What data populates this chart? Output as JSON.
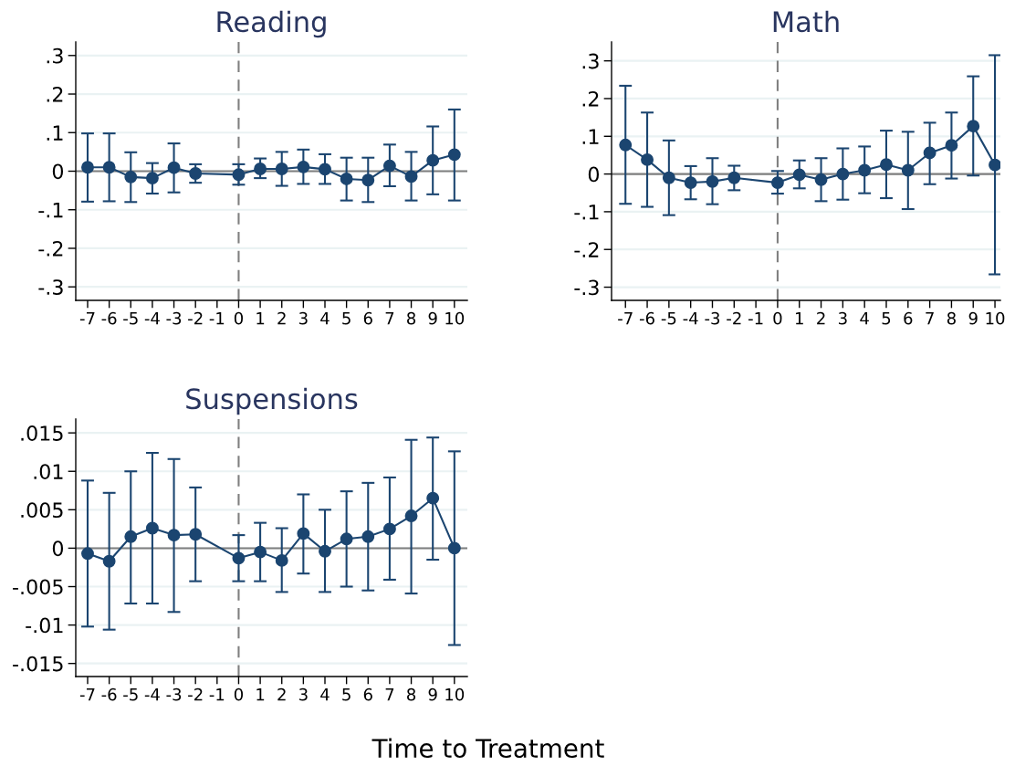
{
  "chart_data": [
    {
      "type": "line",
      "title": "Reading",
      "x": [
        -7,
        -6,
        -5,
        -4,
        -3,
        -2,
        0,
        1,
        2,
        3,
        4,
        5,
        6,
        7,
        8,
        9,
        10
      ],
      "marker": "circle",
      "grid": "y",
      "color": "#1b4570",
      "values": [
        0.01,
        0.01,
        -0.015,
        -0.018,
        0.009,
        -0.006,
        -0.009,
        0.006,
        0.006,
        0.011,
        0.005,
        -0.02,
        -0.023,
        0.014,
        -0.014,
        0.028,
        0.043
      ],
      "errors": [
        [
          -0.079,
          0.098
        ],
        [
          -0.078,
          0.098
        ],
        [
          -0.08,
          0.049
        ],
        [
          -0.058,
          0.021
        ],
        [
          -0.055,
          0.072
        ],
        [
          -0.03,
          0.018
        ],
        [
          -0.035,
          0.018
        ],
        [
          -0.018,
          0.033
        ],
        [
          -0.038,
          0.05
        ],
        [
          -0.033,
          0.056
        ],
        [
          -0.033,
          0.044
        ],
        [
          -0.076,
          0.035
        ],
        [
          -0.08,
          0.035
        ],
        [
          -0.039,
          0.069
        ],
        [
          -0.076,
          0.05
        ],
        [
          -0.06,
          0.116
        ],
        [
          -0.076,
          0.16
        ]
      ],
      "xlim": [
        -7.55,
        10.6
      ],
      "xticks": [
        -7,
        -6,
        -5,
        -4,
        -3,
        -2,
        -1,
        0,
        1,
        2,
        3,
        4,
        5,
        6,
        7,
        8,
        9,
        10
      ],
      "ylim": [
        -0.335,
        0.335
      ],
      "yticks": [
        {
          "value": -0.3,
          "label": "-.3"
        },
        {
          "value": -0.2,
          "label": "-.2"
        },
        {
          "value": -0.1,
          "label": "-.1"
        },
        {
          "value": 0,
          "label": "0"
        },
        {
          "value": 0.1,
          "label": ".1"
        },
        {
          "value": 0.2,
          "label": ".2"
        },
        {
          "value": 0.3,
          "label": ".3"
        }
      ],
      "ref_lines": [
        {
          "axis": "y",
          "value": 0,
          "color": "#7f7f7f",
          "line_style": "solid"
        },
        {
          "axis": "x",
          "value": 0,
          "color": "#7f7f7f",
          "line_style": "dashed"
        }
      ]
    },
    {
      "type": "line",
      "title": "Math",
      "x": [
        -7,
        -6,
        -5,
        -4,
        -3,
        -2,
        0,
        1,
        2,
        3,
        4,
        5,
        6,
        7,
        8,
        9,
        10
      ],
      "marker": "circle",
      "grid": "y",
      "color": "#1b4570",
      "values": [
        0.077,
        0.038,
        -0.01,
        -0.023,
        -0.02,
        -0.01,
        -0.023,
        -0.002,
        -0.015,
        0.0,
        0.01,
        0.025,
        0.01,
        0.056,
        0.076,
        0.127,
        0.024
      ],
      "errors": [
        [
          -0.079,
          0.234
        ],
        [
          -0.087,
          0.163
        ],
        [
          -0.109,
          0.089
        ],
        [
          -0.067,
          0.021
        ],
        [
          -0.08,
          0.042
        ],
        [
          -0.043,
          0.022
        ],
        [
          -0.052,
          0.008
        ],
        [
          -0.038,
          0.036
        ],
        [
          -0.072,
          0.042
        ],
        [
          -0.068,
          0.068
        ],
        [
          -0.051,
          0.073
        ],
        [
          -0.064,
          0.115
        ],
        [
          -0.093,
          0.112
        ],
        [
          -0.027,
          0.136
        ],
        [
          -0.012,
          0.163
        ],
        [
          -0.004,
          0.259
        ],
        [
          -0.266,
          0.315
        ]
      ],
      "xlim": [
        -7.64,
        10.25
      ],
      "xticks": [
        -7,
        -6,
        -5,
        -4,
        -3,
        -2,
        -1,
        0,
        1,
        2,
        3,
        4,
        5,
        6,
        7,
        8,
        9,
        10
      ],
      "ylim": [
        -0.335,
        0.35
      ],
      "yticks": [
        {
          "value": -0.3,
          "label": "-.3"
        },
        {
          "value": -0.2,
          "label": "-.2"
        },
        {
          "value": -0.1,
          "label": "-.1"
        },
        {
          "value": 0,
          "label": "0"
        },
        {
          "value": 0.1,
          "label": ".1"
        },
        {
          "value": 0.2,
          "label": ".2"
        },
        {
          "value": 0.3,
          "label": ".3"
        }
      ],
      "ref_lines": [
        {
          "axis": "y",
          "value": 0,
          "color": "#7f7f7f",
          "line_style": "solid"
        },
        {
          "axis": "x",
          "value": 0,
          "color": "#7f7f7f",
          "line_style": "dashed"
        }
      ]
    },
    {
      "type": "line",
      "title": "Suspensions",
      "xlabel": "Time to Treatment",
      "x": [
        -7,
        -6,
        -5,
        -4,
        -3,
        -2,
        0,
        1,
        2,
        3,
        4,
        5,
        6,
        7,
        8,
        9,
        10
      ],
      "marker": "circle",
      "grid": "y",
      "color": "#1b4570",
      "values": [
        -0.0007,
        -0.0017,
        0.0015,
        0.0026,
        0.0017,
        0.0018,
        -0.0013,
        -0.0005,
        -0.0016,
        0.0019,
        -0.0004,
        0.0012,
        0.0015,
        0.0025,
        0.0042,
        0.0065,
        0.0
      ],
      "errors": [
        [
          -0.0102,
          0.0088
        ],
        [
          -0.0106,
          0.0072
        ],
        [
          -0.0072,
          0.01
        ],
        [
          -0.0072,
          0.0124
        ],
        [
          -0.0083,
          0.0116
        ],
        [
          -0.0043,
          0.0079
        ],
        [
          -0.0043,
          0.0017
        ],
        [
          -0.0043,
          0.0033
        ],
        [
          -0.0057,
          0.0026
        ],
        [
          -0.0033,
          0.007
        ],
        [
          -0.0057,
          0.005
        ],
        [
          -0.005,
          0.0074
        ],
        [
          -0.0055,
          0.0085
        ],
        [
          -0.0041,
          0.0092
        ],
        [
          -0.0059,
          0.0141
        ],
        [
          -0.0015,
          0.0144
        ],
        [
          -0.0126,
          0.0126
        ]
      ],
      "xlim": [
        -7.55,
        10.6
      ],
      "xticks": [
        -7,
        -6,
        -5,
        -4,
        -3,
        -2,
        -1,
        0,
        1,
        2,
        3,
        4,
        5,
        6,
        7,
        8,
        9,
        10
      ],
      "ylim": [
        -0.0167,
        0.0168
      ],
      "yticks": [
        {
          "value": -0.015,
          "label": "-.015"
        },
        {
          "value": -0.01,
          "label": "-.01"
        },
        {
          "value": -0.005,
          "label": "-.005"
        },
        {
          "value": 0,
          "label": "0"
        },
        {
          "value": 0.005,
          "label": ".005"
        },
        {
          "value": 0.01,
          "label": ".01"
        },
        {
          "value": 0.015,
          "label": ".015"
        }
      ],
      "ref_lines": [
        {
          "axis": "y",
          "value": 0,
          "color": "#7f7f7f",
          "line_style": "solid"
        },
        {
          "axis": "x",
          "value": 0,
          "color": "#7f7f7f",
          "line_style": "dashed"
        }
      ]
    }
  ]
}
